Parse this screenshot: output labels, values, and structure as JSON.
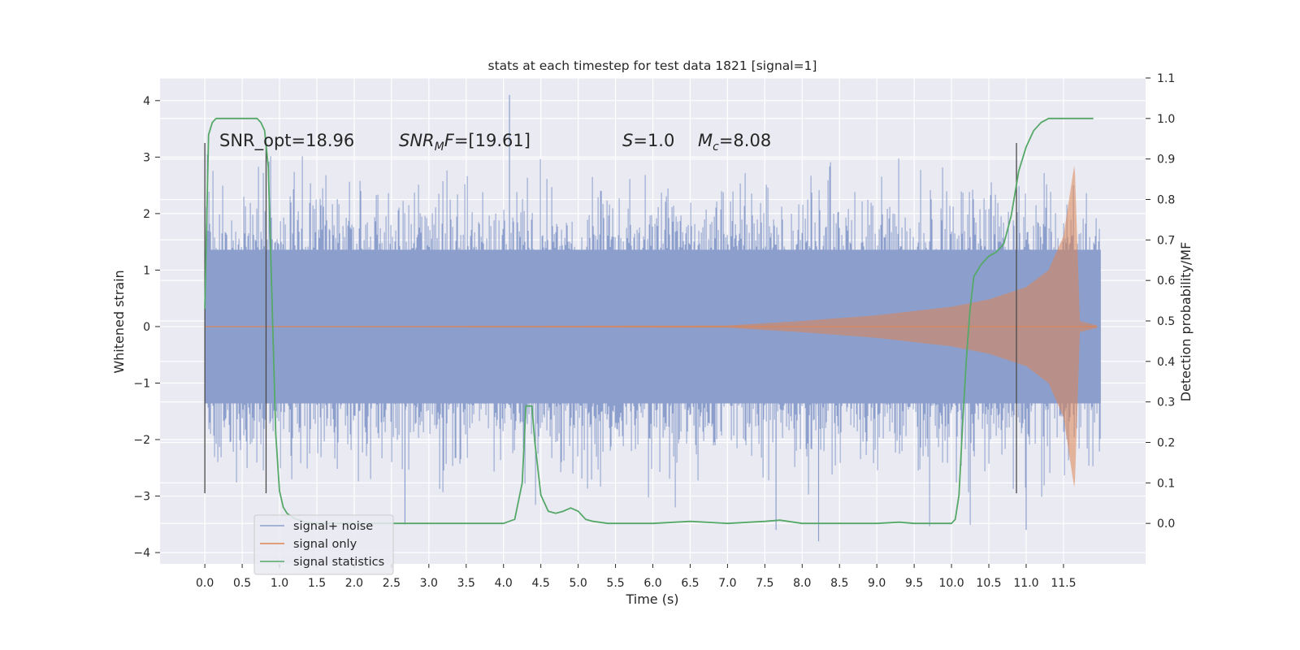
{
  "chart_data": {
    "type": "line",
    "title": "stats at each timestep for test data 1821 [signal=1]",
    "xlabel": "Time (s)",
    "ylabel": "Whitened strain",
    "ylabel_right": "Detection probability/MF",
    "xlim": [
      -0.6,
      12.6
    ],
    "ylim": [
      -4.2,
      4.4
    ],
    "ylim_right": [
      -0.1,
      1.1
    ],
    "x_ticks": [
      "0.0",
      "0.5",
      "1.0",
      "1.5",
      "2.0",
      "2.5",
      "3.0",
      "3.5",
      "4.0",
      "4.5",
      "5.0",
      "5.5",
      "6.0",
      "6.5",
      "7.0",
      "7.5",
      "8.0",
      "8.5",
      "9.0",
      "9.5",
      "10.0",
      "10.5",
      "11.0",
      "11.5"
    ],
    "y_ticks": [
      "4",
      "3",
      "2",
      "1",
      "0",
      "−1",
      "−2",
      "−3",
      "−4"
    ],
    "y_ticks_right": [
      "1.1",
      "1.0",
      "0.9",
      "0.8",
      "0.7",
      "0.6",
      "0.5",
      "0.4",
      "0.3",
      "0.2",
      "0.1",
      "0.0"
    ],
    "grid": true,
    "legend_position": "lower-left",
    "annotations": {
      "snr_opt": "SNR_opt=18.96",
      "snr_mf": "=[19.61]",
      "snr_mf_var": "SNR",
      "snr_mf_sub": "M",
      "snr_mf_suffix": "F",
      "s_var": "S",
      "s_val": "=1.0",
      "mc_var": "M",
      "mc_sub": "c",
      "mc_val": "=8.08"
    },
    "vertical_markers_x": [
      0.0,
      0.82,
      10.87
    ],
    "vertical_markers_y": [
      -2.95,
      3.25
    ],
    "series": [
      {
        "name": "signal+ noise",
        "color": "#8c9fcc",
        "kind": "noise",
        "x_range": [
          0.0,
          12.0
        ],
        "typical_amplitude": 1.7,
        "peak_max": 4.1,
        "peak_min": -3.8
      },
      {
        "name": "signal only",
        "color": "#dd8452",
        "kind": "chirp",
        "x_range": [
          0.0,
          11.95
        ],
        "amplitude_envelope": [
          [
            0.0,
            0.0
          ],
          [
            7.0,
            0.02
          ],
          [
            8.0,
            0.1
          ],
          [
            9.0,
            0.2
          ],
          [
            10.0,
            0.35
          ],
          [
            10.5,
            0.48
          ],
          [
            11.0,
            0.7
          ],
          [
            11.3,
            1.0
          ],
          [
            11.5,
            1.6
          ],
          [
            11.65,
            2.9
          ],
          [
            11.72,
            0.1
          ],
          [
            11.95,
            0.02
          ]
        ]
      },
      {
        "name": "signal statistics",
        "color": "#55a868",
        "axis": "right",
        "x": [
          0.0,
          0.05,
          0.1,
          0.15,
          0.2,
          0.3,
          0.5,
          0.7,
          0.75,
          0.8,
          0.85,
          0.9,
          0.95,
          1.0,
          1.05,
          1.1,
          1.2,
          1.35,
          1.5,
          1.75,
          2.0,
          2.5,
          3.0,
          3.5,
          4.0,
          4.15,
          4.25,
          4.3,
          4.38,
          4.42,
          4.5,
          4.6,
          4.7,
          4.8,
          4.9,
          5.0,
          5.1,
          5.2,
          5.4,
          6.0,
          6.5,
          7.0,
          7.5,
          7.7,
          8.0,
          8.5,
          9.0,
          9.3,
          9.5,
          10.0,
          10.05,
          10.1,
          10.15,
          10.2,
          10.25,
          10.3,
          10.4,
          10.5,
          10.6,
          10.7,
          10.8,
          10.9,
          11.0,
          11.1,
          11.2,
          11.3,
          11.4,
          11.5,
          11.6,
          11.7,
          11.9
        ],
        "y": [
          0.53,
          0.96,
          0.99,
          1.0,
          1.0,
          1.0,
          1.0,
          1.0,
          0.99,
          0.97,
          0.88,
          0.55,
          0.22,
          0.08,
          0.04,
          0.025,
          0.012,
          0.003,
          0.0,
          0.0,
          0.0,
          0.0,
          0.0,
          0.0,
          0.0,
          0.01,
          0.1,
          0.29,
          0.29,
          0.2,
          0.07,
          0.03,
          0.025,
          0.03,
          0.038,
          0.03,
          0.01,
          0.005,
          0.0,
          0.0,
          0.005,
          0.0,
          0.005,
          0.008,
          0.0,
          0.0,
          0.0,
          0.003,
          0.0,
          0.0,
          0.01,
          0.07,
          0.25,
          0.41,
          0.53,
          0.61,
          0.64,
          0.66,
          0.67,
          0.69,
          0.76,
          0.87,
          0.93,
          0.97,
          0.99,
          1.0,
          1.0,
          1.0,
          1.0,
          1.0,
          1.0
        ]
      }
    ]
  }
}
